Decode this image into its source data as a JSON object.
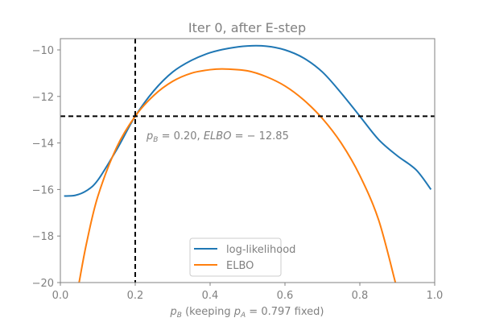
{
  "chart_data": {
    "type": "line",
    "title": "Iter 0, after E-step",
    "xlabel": "p_B (keeping p_A = 0.797 fixed)",
    "xlabel_parts": {
      "sym": "p",
      "sub": "B",
      "mid": " (keeping ",
      "sym2": "p",
      "sub2": "A",
      "tail": " = 0.797 fixed)"
    },
    "ylabel": "",
    "xlim": [
      0.0,
      1.0
    ],
    "ylim": [
      -20,
      -9.5
    ],
    "xticks": [
      0.0,
      0.2,
      0.4,
      0.6,
      0.8,
      1.0
    ],
    "xtick_labels": [
      "0.0",
      "0.2",
      "0.4",
      "0.6",
      "0.8",
      "1.0"
    ],
    "yticks": [
      -10,
      -12,
      -14,
      -16,
      -18,
      -20
    ],
    "ytick_labels": [
      "−10",
      "−12",
      "−14",
      "−16",
      "−18",
      "−20"
    ],
    "grid": false,
    "legend_position": "lower center",
    "series": [
      {
        "name": "log-likelihood",
        "color": "#1f77b4",
        "x": [
          0.01,
          0.04,
          0.07,
          0.1,
          0.15,
          0.2,
          0.25,
          0.3,
          0.35,
          0.4,
          0.45,
          0.5,
          0.55,
          0.6,
          0.65,
          0.7,
          0.75,
          0.8,
          0.85,
          0.9,
          0.95,
          0.99
        ],
        "y": [
          -16.28,
          -16.25,
          -16.05,
          -15.6,
          -14.3,
          -12.85,
          -11.75,
          -10.95,
          -10.45,
          -10.12,
          -9.93,
          -9.83,
          -9.84,
          -10.0,
          -10.35,
          -10.95,
          -11.85,
          -12.85,
          -13.85,
          -14.55,
          -15.15,
          -16.0
        ]
      },
      {
        "name": "ELBO",
        "color": "#ff7f0e",
        "x": [
          0.05,
          0.07,
          0.1,
          0.15,
          0.2,
          0.25,
          0.3,
          0.35,
          0.4,
          0.44,
          0.5,
          0.55,
          0.6,
          0.65,
          0.7,
          0.75,
          0.8,
          0.85,
          0.895
        ],
        "y": [
          -20.0,
          -18.3,
          -16.3,
          -14.2,
          -12.85,
          -11.95,
          -11.35,
          -11.0,
          -10.85,
          -10.82,
          -10.9,
          -11.15,
          -11.55,
          -12.15,
          -12.95,
          -14.0,
          -15.4,
          -17.3,
          -20.0
        ]
      }
    ],
    "reference_lines": {
      "vertical_x": 0.2,
      "horizontal_y": -12.85,
      "color": "#000000",
      "style": "dashed"
    },
    "annotations": [
      {
        "text": "p_B = 0.20, ELBO = −12.85",
        "x": 0.23,
        "y": -13.85,
        "sym": "p",
        "sub": "B",
        "rest": " = 0.20, ",
        "ital": "ELBO",
        "tail": " = − 12.85"
      }
    ]
  }
}
